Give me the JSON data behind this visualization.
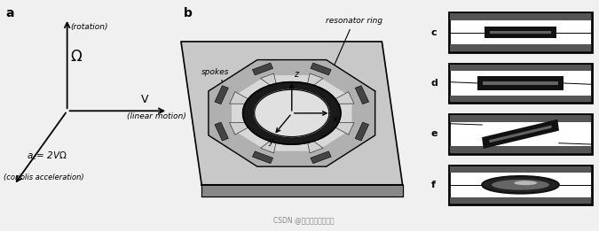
{
  "bg_color": "#f0f0f0",
  "label_a": "a",
  "label_b": "b",
  "label_c": "c",
  "label_d": "d",
  "label_e": "e",
  "label_f": "f",
  "omega_label": "Ω",
  "v_label": "V",
  "rotation_label": "(rotation)",
  "linear_label": "(linear motion)",
  "coriolis_label": "(coriolis acceleration)",
  "ac_label": "a_c = 2VΩ",
  "spokes_label": "spokes",
  "resonator_label": "resonator ring",
  "watermark": "CSDN @资深流水灯工程师"
}
